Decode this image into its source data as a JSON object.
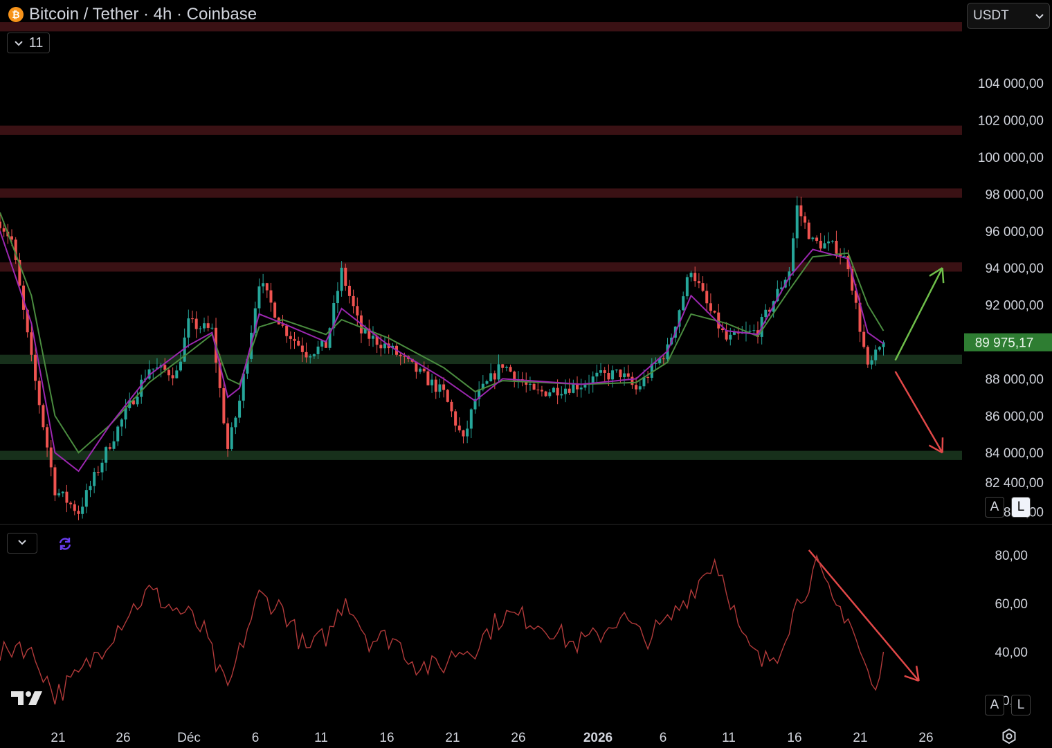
{
  "header": {
    "title": "Bitcoin / Tether · 4h · Coinbase",
    "indicators_count": "11",
    "currency": "USDT"
  },
  "price_axis": {
    "labels": [
      "104 000,00",
      "102 000,00",
      "100 000,00",
      "98 000,00",
      "96 000,00",
      "94 000,00",
      "92 000,00",
      "88 000,00",
      "86 000,00",
      "84 000,00",
      "82 400,00",
      "80 800,00"
    ],
    "values": [
      104000,
      102000,
      100000,
      98000,
      96000,
      94000,
      92000,
      88000,
      86000,
      84000,
      82400,
      80800
    ],
    "current_price": "89 975,17",
    "current_value": 89975.17,
    "scale_buttons": {
      "auto": "A",
      "log": "L"
    }
  },
  "rsi_axis": {
    "labels": [
      "80,00",
      "60,00",
      "40,00",
      "20,00"
    ],
    "values": [
      80,
      60,
      40,
      20
    ],
    "scale_buttons": {
      "auto": "A",
      "log": "L"
    }
  },
  "time_axis": {
    "labels": [
      "21",
      "26",
      "Déc",
      "6",
      "11",
      "16",
      "21",
      "26",
      "2026",
      "6",
      "11",
      "16",
      "21",
      "26"
    ]
  },
  "colors": {
    "resistance_zone": "#3a1114",
    "support_zone": "#17301b",
    "candle_up": "#26a69a",
    "candle_down": "#ef5350",
    "ema_fast": "#9c27b0",
    "ema_slow": "#4a8c3f",
    "rsi": "#b23a3a",
    "bull_arrow": "#6fbf4a",
    "bear_arrow": "#e24848",
    "price_tag": "#2e7d32"
  },
  "chart_data": {
    "type": "candlestick",
    "symbol": "Bitcoin / Tether",
    "timeframe": "4h",
    "exchange": "Coinbase",
    "resistance_zones": [
      [
        106800,
        107300
      ],
      [
        101200,
        101700
      ],
      [
        97800,
        98300
      ],
      [
        93800,
        94300
      ]
    ],
    "support_zones": [
      [
        88800,
        89300
      ],
      [
        83600,
        84100
      ]
    ],
    "price_path": [
      [
        0,
        96500
      ],
      [
        3,
        95500
      ],
      [
        8,
        89000
      ],
      [
        14,
        82000
      ],
      [
        20,
        80800
      ],
      [
        28,
        84500
      ],
      [
        38,
        88600
      ],
      [
        45,
        88300
      ],
      [
        48,
        91000
      ],
      [
        54,
        90600
      ],
      [
        58,
        84200
      ],
      [
        61,
        86800
      ],
      [
        66,
        93300
      ],
      [
        72,
        90800
      ],
      [
        78,
        89400
      ],
      [
        83,
        89800
      ],
      [
        87,
        93800
      ],
      [
        92,
        90500
      ],
      [
        99,
        89700
      ],
      [
        113,
        87200
      ],
      [
        118,
        84600
      ],
      [
        121,
        86900
      ],
      [
        128,
        88800
      ],
      [
        136,
        87200
      ],
      [
        148,
        87700
      ],
      [
        152,
        88100
      ],
      [
        158,
        88300
      ],
      [
        162,
        87400
      ],
      [
        170,
        89600
      ],
      [
        176,
        94000
      ],
      [
        180,
        92000
      ],
      [
        185,
        90100
      ],
      [
        193,
        90600
      ],
      [
        201,
        93900
      ],
      [
        203,
        97300
      ],
      [
        207,
        95400
      ],
      [
        213,
        95100
      ],
      [
        216,
        94200
      ],
      [
        221,
        88500
      ],
      [
        225,
        89975
      ]
    ],
    "ema_fast_path": [
      [
        0,
        96000
      ],
      [
        8,
        91000
      ],
      [
        14,
        84000
      ],
      [
        20,
        83000
      ],
      [
        28,
        85500
      ],
      [
        38,
        88200
      ],
      [
        48,
        89800
      ],
      [
        54,
        90500
      ],
      [
        58,
        87000
      ],
      [
        61,
        87500
      ],
      [
        66,
        91500
      ],
      [
        72,
        91000
      ],
      [
        83,
        90000
      ],
      [
        87,
        91800
      ],
      [
        99,
        89800
      ],
      [
        113,
        88000
      ],
      [
        121,
        86800
      ],
      [
        128,
        88000
      ],
      [
        148,
        87700
      ],
      [
        162,
        88000
      ],
      [
        170,
        89500
      ],
      [
        176,
        92500
      ],
      [
        185,
        90600
      ],
      [
        193,
        90400
      ],
      [
        201,
        93500
      ],
      [
        207,
        95000
      ],
      [
        216,
        94500
      ],
      [
        221,
        90500
      ],
      [
        225,
        89900
      ]
    ],
    "ema_slow_path": [
      [
        0,
        97000
      ],
      [
        8,
        92500
      ],
      [
        14,
        86000
      ],
      [
        20,
        84000
      ],
      [
        28,
        85500
      ],
      [
        38,
        87800
      ],
      [
        48,
        89400
      ],
      [
        54,
        90400
      ],
      [
        58,
        88000
      ],
      [
        61,
        87700
      ],
      [
        66,
        90800
      ],
      [
        72,
        91200
      ],
      [
        83,
        90400
      ],
      [
        87,
        91200
      ],
      [
        99,
        90200
      ],
      [
        113,
        88600
      ],
      [
        121,
        87300
      ],
      [
        128,
        87900
      ],
      [
        148,
        87700
      ],
      [
        162,
        87800
      ],
      [
        170,
        88900
      ],
      [
        176,
        91500
      ],
      [
        185,
        91000
      ],
      [
        193,
        90300
      ],
      [
        201,
        92800
      ],
      [
        207,
        94600
      ],
      [
        216,
        94800
      ],
      [
        221,
        92000
      ],
      [
        225,
        90600
      ]
    ],
    "rsi": [
      [
        0,
        38
      ],
      [
        5,
        44
      ],
      [
        10,
        35
      ],
      [
        14,
        22
      ],
      [
        20,
        30
      ],
      [
        26,
        42
      ],
      [
        32,
        55
      ],
      [
        38,
        65
      ],
      [
        44,
        58
      ],
      [
        48,
        55
      ],
      [
        52,
        48
      ],
      [
        56,
        30
      ],
      [
        58,
        24
      ],
      [
        62,
        45
      ],
      [
        66,
        63
      ],
      [
        72,
        58
      ],
      [
        78,
        40
      ],
      [
        84,
        48
      ],
      [
        88,
        63
      ],
      [
        94,
        45
      ],
      [
        100,
        46
      ],
      [
        106,
        35
      ],
      [
        112,
        33
      ],
      [
        116,
        40
      ],
      [
        121,
        42
      ],
      [
        124,
        48
      ],
      [
        128,
        55
      ],
      [
        134,
        54
      ],
      [
        140,
        50
      ],
      [
        146,
        43
      ],
      [
        152,
        46
      ],
      [
        158,
        55
      ],
      [
        164,
        45
      ],
      [
        170,
        52
      ],
      [
        176,
        65
      ],
      [
        182,
        78
      ],
      [
        185,
        68
      ],
      [
        189,
        45
      ],
      [
        194,
        35
      ],
      [
        198,
        40
      ],
      [
        203,
        60
      ],
      [
        208,
        75
      ],
      [
        212,
        60
      ],
      [
        216,
        55
      ],
      [
        219,
        40
      ],
      [
        223,
        22
      ],
      [
        225,
        40
      ]
    ],
    "projections": {
      "bullish": [
        [
          228,
          89000
        ],
        [
          240,
          94000
        ]
      ],
      "bearish": [
        [
          228,
          88400
        ],
        [
          240,
          84000
        ]
      ],
      "rsi_trend": [
        [
          206,
          82
        ],
        [
          234,
          28
        ]
      ]
    },
    "x_range": [
      0,
      245
    ],
    "y_range": [
      80600,
      108500
    ],
    "rsi_range": [
      12,
      92
    ]
  }
}
